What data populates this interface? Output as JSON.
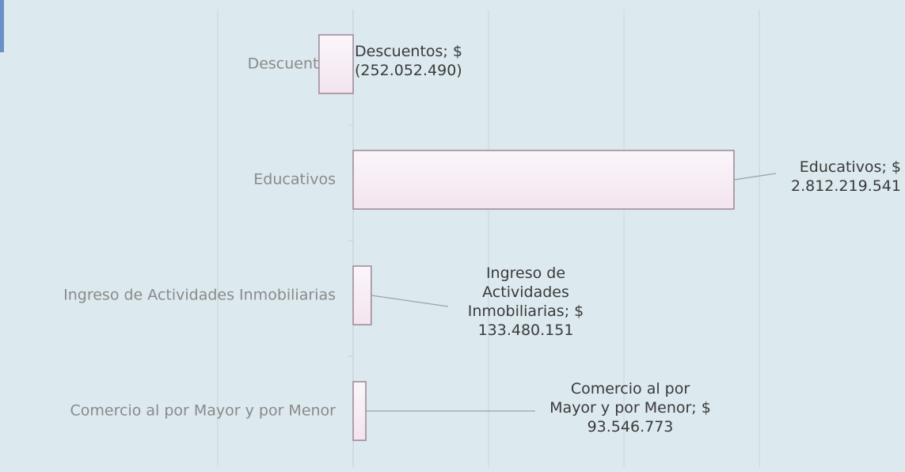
{
  "chart_data": {
    "type": "barh",
    "categories": [
      "Descuentos",
      "Educativos",
      "Ingreso de Actividades Inmobiliarias",
      "Comercio al por Mayor y por Menor"
    ],
    "values": [
      -252052490,
      2812219541,
      133480151,
      93546773
    ],
    "value_labels": [
      "Descuentos; $ (252.052.490)",
      "Educativos; $ 2.812.219.541",
      "Ingreso de Actividades Inmobiliarias; $ 133.480.151",
      "Comercio al por Mayor y por Menor; $ 93.546.773"
    ],
    "color": "#f3e4ef",
    "xlim": [
      -1000000000,
      3900000000
    ],
    "xticks": [
      -1000000000,
      0,
      1000000000,
      2000000000,
      3000000000
    ],
    "grid": true
  }
}
